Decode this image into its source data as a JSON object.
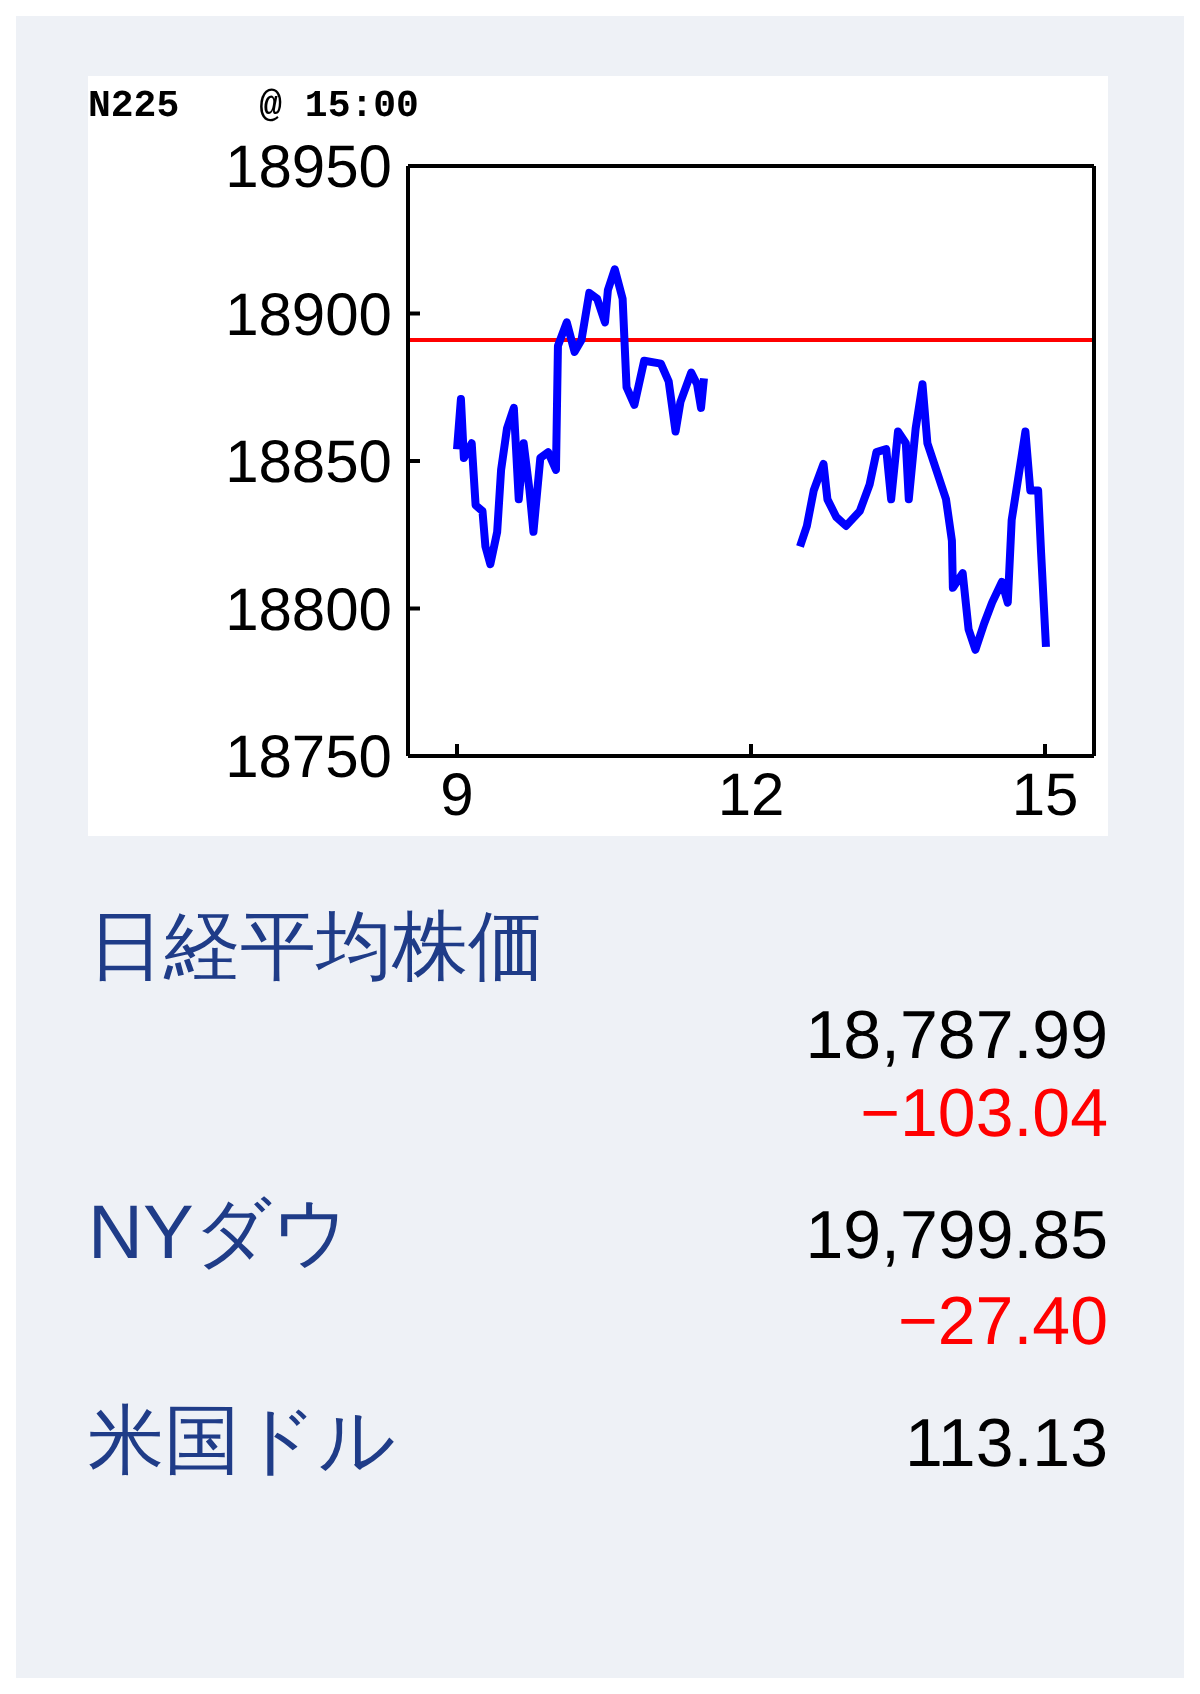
{
  "chart_data": [
    {
      "type": "line",
      "title": "N225",
      "subtitle": "@ 15:00",
      "xlim": [
        8.5,
        15.5
      ],
      "xticks": [
        9,
        12,
        15
      ],
      "ylim": [
        18750,
        18950
      ],
      "yticks": [
        18750,
        18800,
        18850,
        18900,
        18950
      ],
      "marker": "none",
      "line_style": "solid",
      "x": [
        9.0,
        9.04,
        9.07,
        9.15,
        9.19,
        9.26,
        9.29,
        9.34,
        9.41,
        9.45,
        9.51,
        9.58,
        9.63,
        9.68,
        9.74,
        9.78,
        9.85,
        9.93,
        10.01,
        10.03,
        10.12,
        10.2,
        10.27,
        10.35,
        10.43,
        10.51,
        10.54,
        10.61,
        10.69,
        10.73,
        10.81,
        10.91,
        11.08,
        11.16,
        11.23,
        11.28,
        11.39,
        11.45,
        11.49,
        11.52,
        12.0,
        12.5,
        12.57,
        12.64,
        12.74,
        12.78,
        12.87,
        12.97,
        13.11,
        13.21,
        13.28,
        13.38,
        13.43,
        13.5,
        13.58,
        13.61,
        13.68,
        13.75,
        13.8,
        13.89,
        13.99,
        14.05,
        14.06,
        14.16,
        14.22,
        14.29,
        14.38,
        14.46,
        14.56,
        14.62,
        14.66,
        14.74,
        14.8,
        14.85,
        14.93,
        14.96,
        15.01
      ],
      "series": [
        {
          "color": "#0000ff",
          "values": [
            18854,
            18871,
            18851,
            18856,
            18835,
            18833,
            18821,
            18815,
            18826,
            18847,
            18861,
            18868,
            18837,
            18856,
            18840,
            18826,
            18851,
            18853,
            18847,
            18889,
            18897,
            18887,
            18891,
            18907,
            18905,
            18897,
            18908,
            18915,
            18905,
            18875,
            18869,
            18884,
            18883,
            18877,
            18860,
            18870,
            18880,
            18876,
            18868,
            18878,
            null,
            18821,
            18828,
            18840,
            18849,
            18837,
            18831,
            18828,
            18833,
            18842,
            18853,
            18854,
            18837,
            18860,
            18856,
            18837,
            18861,
            18876,
            18856,
            18847,
            18837,
            18823,
            18807,
            18812,
            18793,
            18786,
            18795,
            18802,
            18809,
            18802,
            18830,
            18847,
            18860,
            18840,
            18840,
            18819,
            18787
          ]
        }
      ],
      "ref_lines": [
        {
          "axis": "y",
          "value": 18891,
          "color": "#ff0000"
        }
      ]
    },
    {
      "type": "other",
      "annotations": [
        "日経平均株価",
        "18,787.99",
        "−103.04",
        "NYダウ",
        "19,799.85",
        "−27.40",
        "米国ドル",
        "113.13"
      ]
    }
  ]
}
